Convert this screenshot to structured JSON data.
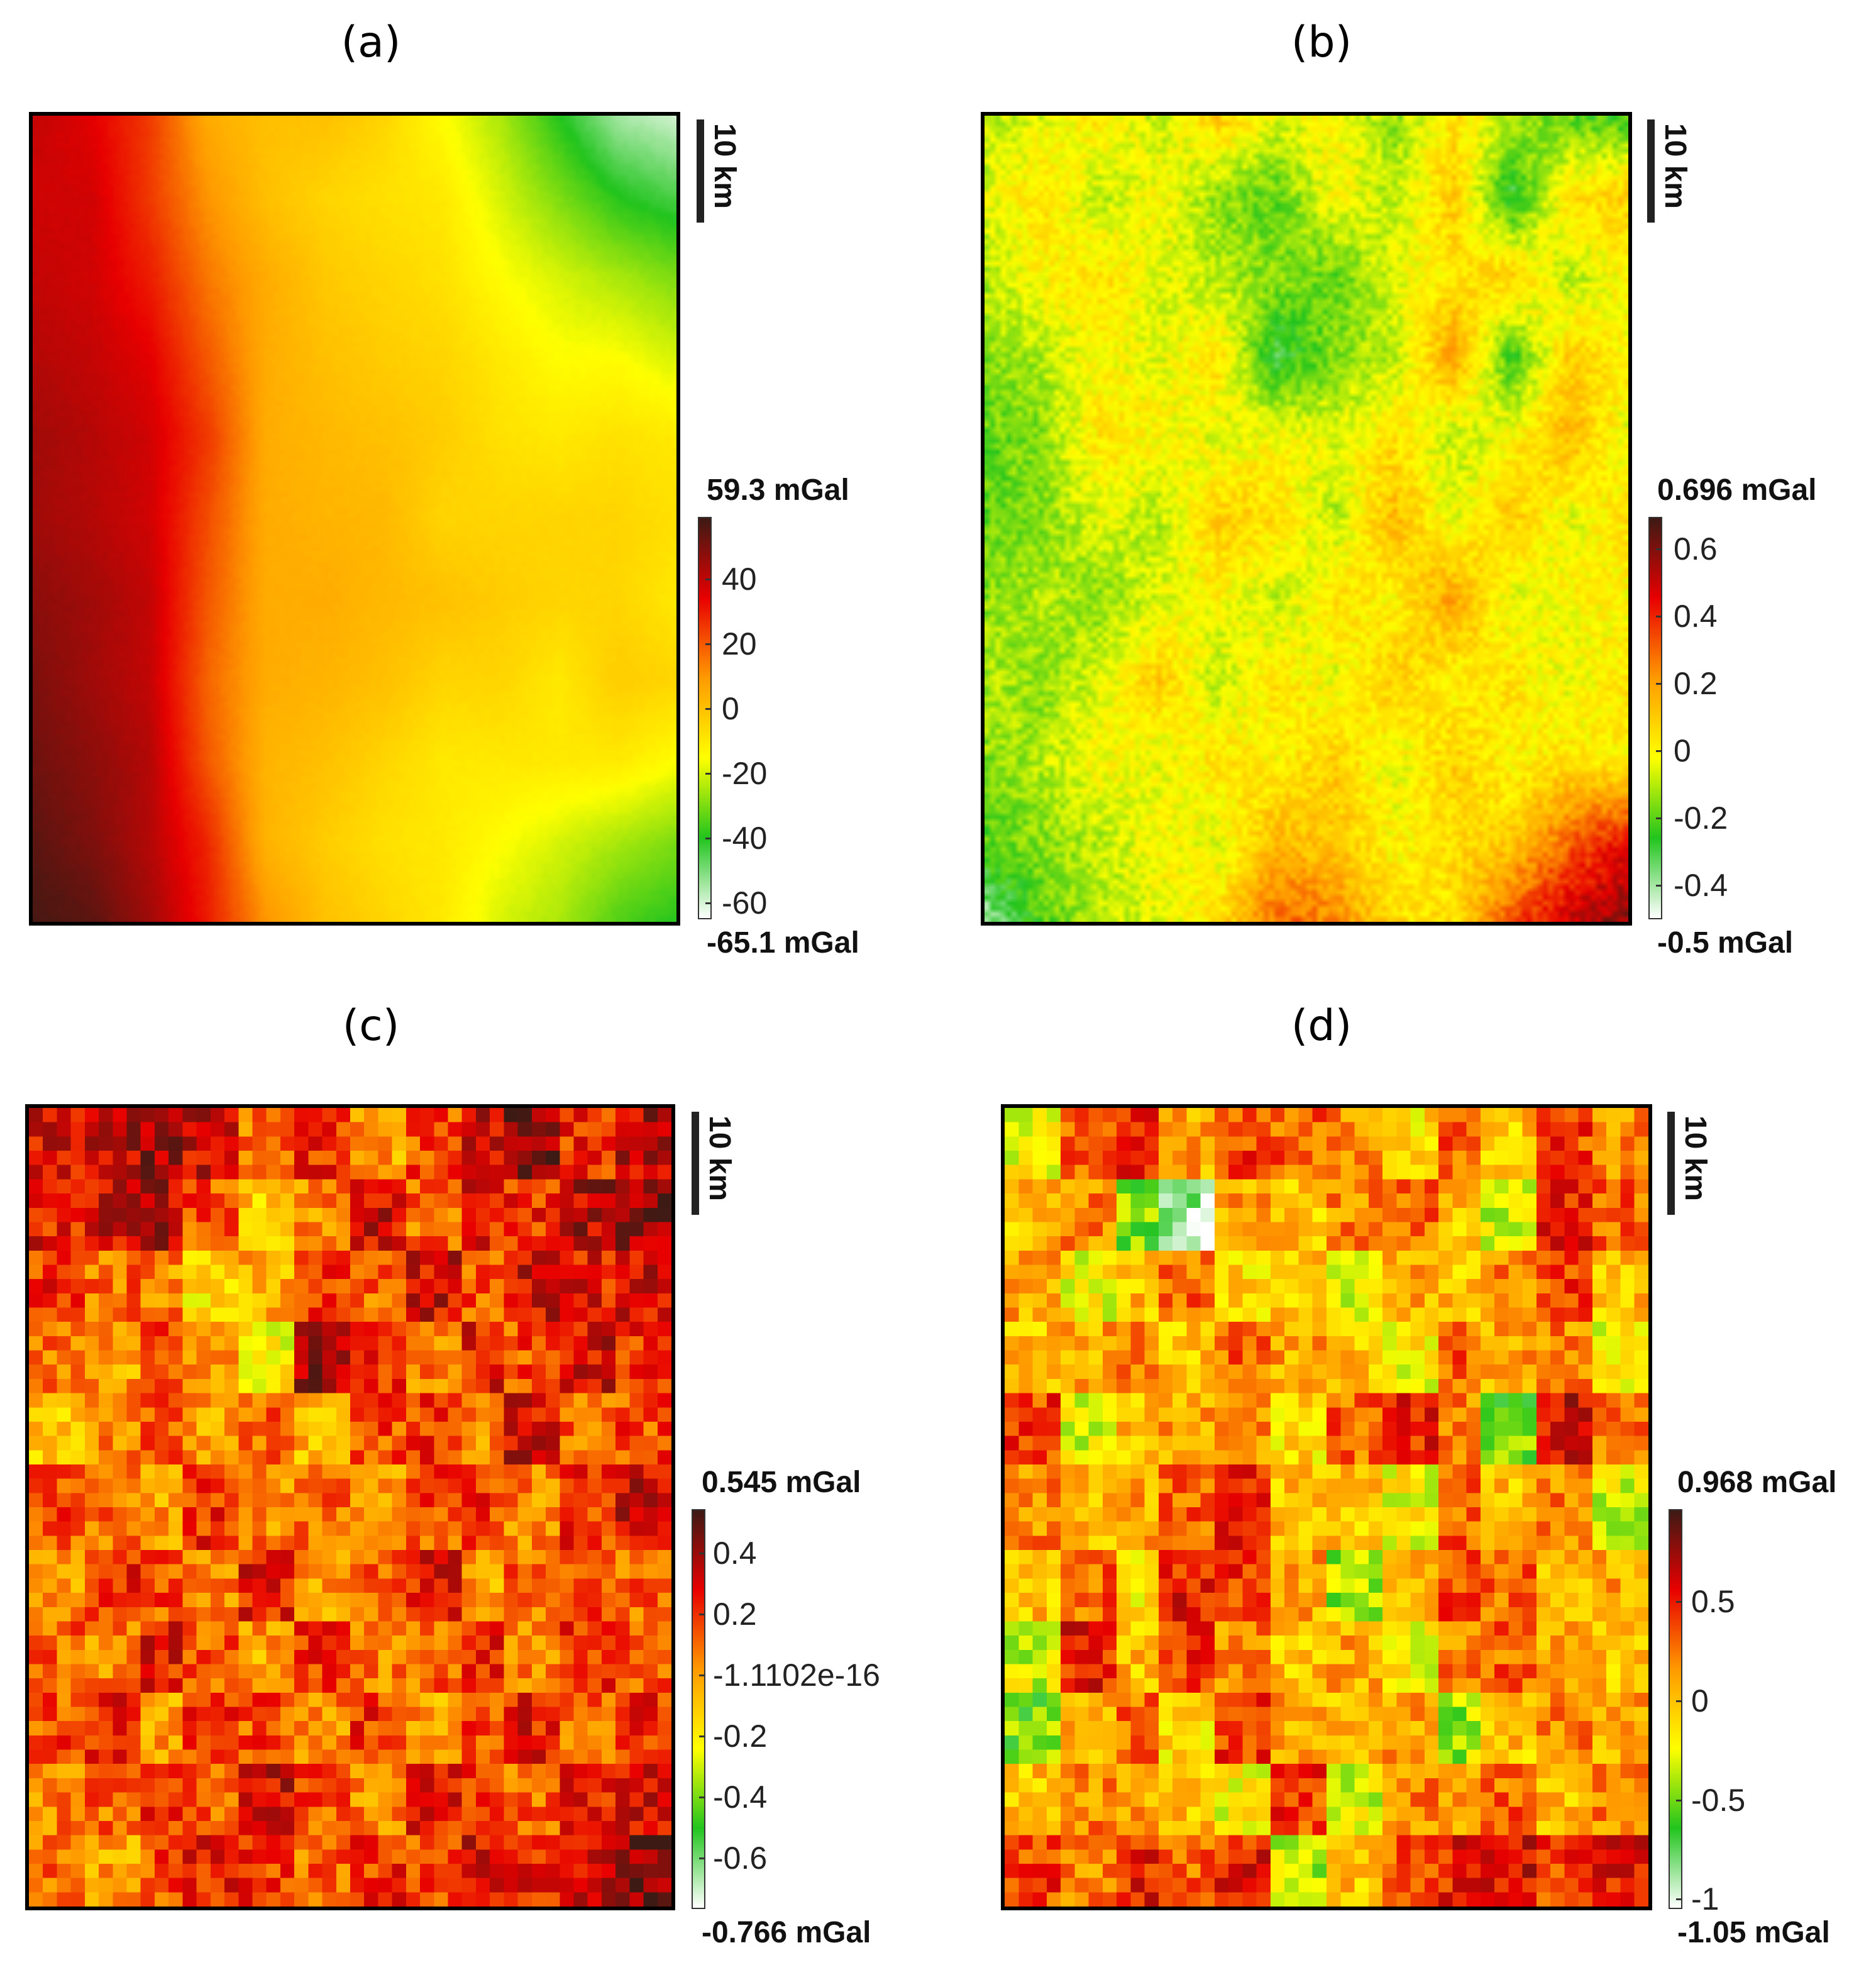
{
  "colormap": [
    "#ffffff",
    "#22c41e",
    "#ffff00",
    "#ff9a00",
    "#e80000",
    "#3d1a14"
  ],
  "chart_data": [
    {
      "type": "heatmap",
      "panel": "(a)",
      "scale_label": "10 km",
      "max_label": "59.3 mGal",
      "min_label": "-65.1 mGal",
      "vmin": -65.1,
      "vmax": 59.3,
      "ticks": [
        {
          "value": 40,
          "label": "40"
        },
        {
          "value": 20,
          "label": "20"
        },
        {
          "value": 0,
          "label": "0"
        },
        {
          "value": -20,
          "label": "-20"
        },
        {
          "value": -40,
          "label": "-40"
        },
        {
          "value": -60,
          "label": "-60"
        }
      ],
      "smooth": true,
      "grid": [
        [
          40,
          35,
          25,
          5,
          0,
          0,
          -5,
          -15,
          -25,
          -40,
          -55,
          -60
        ],
        [
          38,
          38,
          25,
          10,
          0,
          -5,
          -8,
          -10,
          -20,
          -30,
          -40,
          -45
        ],
        [
          40,
          38,
          30,
          15,
          5,
          -2,
          -5,
          -8,
          -15,
          -20,
          -25,
          -30
        ],
        [
          42,
          40,
          35,
          20,
          5,
          0,
          -3,
          -5,
          -10,
          -15,
          -15,
          -20
        ],
        [
          45,
          42,
          38,
          25,
          5,
          2,
          0,
          -3,
          -8,
          -10,
          -8,
          -10
        ],
        [
          45,
          42,
          38,
          22,
          5,
          3,
          2,
          -5,
          -5,
          -5,
          -5,
          -8
        ],
        [
          48,
          45,
          40,
          20,
          5,
          5,
          2,
          0,
          -3,
          -5,
          -5,
          -10
        ],
        [
          50,
          45,
          40,
          18,
          5,
          3,
          0,
          -5,
          -5,
          -10,
          -3,
          -5
        ],
        [
          52,
          48,
          42,
          20,
          3,
          0,
          -5,
          -10,
          -10,
          -10,
          -10,
          -15
        ],
        [
          55,
          50,
          42,
          28,
          3,
          -3,
          -8,
          -10,
          -15,
          -20,
          -25,
          -30
        ],
        [
          58,
          55,
          45,
          30,
          10,
          0,
          -5,
          -10,
          -20,
          -25,
          -35,
          -40
        ]
      ]
    },
    {
      "type": "heatmap",
      "panel": "(b)",
      "scale_label": "10 km",
      "max_label": "0.696 mGal",
      "min_label": "-0.5 mGal",
      "vmin": -0.5,
      "vmax": 0.696,
      "ticks": [
        {
          "value": 0.6,
          "label": "0.6"
        },
        {
          "value": 0.4,
          "label": "0.4"
        },
        {
          "value": 0.2,
          "label": "0.2"
        },
        {
          "value": 0,
          "label": "0"
        },
        {
          "value": -0.2,
          "label": "-0.2"
        },
        {
          "value": -0.4,
          "label": "-0.4"
        }
      ],
      "smooth": true,
      "grid": [
        [
          -0.1,
          -0.05,
          0.05,
          -0.1,
          0.1,
          -0.05,
          0.0,
          -0.15,
          0.05,
          -0.1,
          -0.2,
          -0.25
        ],
        [
          -0.05,
          0.05,
          -0.1,
          0.0,
          -0.15,
          -0.2,
          0.0,
          -0.1,
          0.1,
          -0.3,
          0.05,
          0.1
        ],
        [
          -0.1,
          0.0,
          0.05,
          -0.05,
          -0.1,
          -0.15,
          -0.2,
          -0.05,
          0.05,
          0.1,
          -0.1,
          0.0
        ],
        [
          -0.15,
          -0.1,
          0.0,
          -0.05,
          0.05,
          -0.3,
          -0.15,
          -0.1,
          0.2,
          -0.25,
          0.1,
          0.0
        ],
        [
          -0.2,
          -0.15,
          0.05,
          0.0,
          -0.05,
          0.0,
          -0.05,
          0.05,
          -0.1,
          0.0,
          0.15,
          -0.05
        ],
        [
          -0.2,
          -0.15,
          -0.05,
          -0.1,
          0.1,
          0.05,
          -0.1,
          0.15,
          -0.05,
          0.1,
          -0.05,
          0.05
        ],
        [
          -0.15,
          -0.1,
          -0.15,
          -0.05,
          0.0,
          -0.1,
          0.05,
          0.0,
          0.2,
          -0.05,
          0.0,
          0.0
        ],
        [
          -0.1,
          -0.15,
          -0.05,
          0.1,
          -0.1,
          0.05,
          -0.05,
          0.1,
          0.0,
          0.05,
          -0.05,
          0.05
        ],
        [
          -0.15,
          -0.1,
          0.0,
          -0.05,
          0.05,
          0.0,
          0.1,
          -0.05,
          0.1,
          0.0,
          0.05,
          0.0
        ],
        [
          -0.2,
          -0.15,
          -0.1,
          0.0,
          -0.05,
          0.15,
          0.1,
          0.0,
          0.05,
          0.1,
          0.3,
          0.45
        ],
        [
          -0.4,
          -0.2,
          -0.1,
          -0.05,
          0.05,
          0.3,
          0.25,
          0.05,
          0.05,
          0.35,
          0.5,
          0.6
        ]
      ]
    },
    {
      "type": "heatmap",
      "panel": "(c)",
      "scale_label": "10 km",
      "max_label": "0.545 mGal",
      "min_label": "-0.766 mGal",
      "vmin": -0.766,
      "vmax": 0.545,
      "ticks": [
        {
          "value": 0.4,
          "label": "0.4"
        },
        {
          "value": 0.2,
          "label": "0.2"
        },
        {
          "value": 0,
          "label": "-1.1102e-16"
        },
        {
          "value": -0.2,
          "label": "-0.2"
        },
        {
          "value": -0.4,
          "label": "-0.4"
        },
        {
          "value": -0.6,
          "label": "-0.6"
        }
      ],
      "smooth": false,
      "grid": [
        [
          0.3,
          0.35,
          0.4,
          0.3,
          0.1,
          0.2,
          0.0,
          0.15,
          0.3,
          0.45,
          0.2,
          0.35
        ],
        [
          0.25,
          0.3,
          0.35,
          0.15,
          -0.1,
          0.05,
          0.3,
          0.1,
          0.25,
          0.2,
          0.35,
          0.4
        ],
        [
          0.2,
          0.1,
          0.05,
          -0.15,
          -0.05,
          0.2,
          0.1,
          0.3,
          0.15,
          0.3,
          0.25,
          0.3
        ],
        [
          0.1,
          0.0,
          0.2,
          0.05,
          -0.2,
          0.4,
          0.2,
          0.05,
          0.25,
          0.15,
          0.3,
          0.2
        ],
        [
          -0.1,
          0.05,
          0.15,
          0.0,
          0.1,
          -0.05,
          0.15,
          0.2,
          0.05,
          0.3,
          0.1,
          0.15
        ],
        [
          0.15,
          0.1,
          0.0,
          0.2,
          0.05,
          0.1,
          0.0,
          0.15,
          0.2,
          0.05,
          0.2,
          0.3
        ],
        [
          0.0,
          0.2,
          0.15,
          0.05,
          0.25,
          0.0,
          0.1,
          0.25,
          0.0,
          0.1,
          0.15,
          0.1
        ],
        [
          0.1,
          0.05,
          0.25,
          0.15,
          0.0,
          0.2,
          0.05,
          0.1,
          0.25,
          0.05,
          0.2,
          0.15
        ],
        [
          0.15,
          0.25,
          0.0,
          0.2,
          0.15,
          0.05,
          0.2,
          0.0,
          0.15,
          0.25,
          0.1,
          0.2
        ],
        [
          0.05,
          0.1,
          0.2,
          0.1,
          0.3,
          0.15,
          0.05,
          0.25,
          0.2,
          0.1,
          0.25,
          0.3
        ],
        [
          0.1,
          0.0,
          0.15,
          0.25,
          0.2,
          0.1,
          0.2,
          0.15,
          0.3,
          0.25,
          0.3,
          0.45
        ]
      ]
    },
    {
      "type": "heatmap",
      "panel": "(d)",
      "scale_label": "10 km",
      "max_label": "0.968 mGal",
      "min_label": "-1.05 mGal",
      "vmin": -1.05,
      "vmax": 0.968,
      "ticks": [
        {
          "value": 0.5,
          "label": "0.5"
        },
        {
          "value": 0,
          "label": "0"
        },
        {
          "value": -0.5,
          "label": "-0.5"
        },
        {
          "value": -1,
          "label": "-1"
        }
      ],
      "smooth": false,
      "grid": [
        [
          -0.2,
          0.3,
          0.5,
          0.1,
          0.4,
          0.3,
          0.2,
          -0.1,
          0.3,
          0.0,
          0.4,
          0.2
        ],
        [
          0.0,
          0.2,
          -0.5,
          -0.9,
          0.1,
          0.0,
          0.2,
          0.3,
          0.0,
          -0.3,
          0.5,
          0.3
        ],
        [
          0.1,
          -0.2,
          0.0,
          0.3,
          -0.1,
          0.0,
          -0.3,
          0.1,
          0.0,
          0.2,
          0.4,
          0.0
        ],
        [
          0.0,
          0.1,
          0.2,
          0.0,
          0.3,
          0.1,
          0.0,
          -0.2,
          0.3,
          0.1,
          0.2,
          -0.2
        ],
        [
          0.4,
          -0.3,
          0.0,
          0.1,
          0.2,
          -0.1,
          0.3,
          0.5,
          0.2,
          -0.5,
          0.6,
          0.3
        ],
        [
          0.2,
          0.0,
          0.1,
          0.3,
          0.5,
          0.0,
          0.0,
          -0.2,
          0.3,
          0.0,
          0.2,
          -0.3
        ],
        [
          0.0,
          0.3,
          -0.1,
          0.5,
          0.4,
          0.1,
          -0.4,
          0.0,
          0.4,
          0.3,
          0.0,
          0.1
        ],
        [
          -0.3,
          0.5,
          0.0,
          0.4,
          0.2,
          0.0,
          0.1,
          -0.2,
          0.2,
          0.3,
          0.1,
          0.0
        ],
        [
          -0.5,
          0.1,
          0.3,
          -0.1,
          0.4,
          0.1,
          0.0,
          0.1,
          -0.4,
          0.0,
          0.2,
          0.1
        ],
        [
          0.0,
          0.2,
          0.1,
          0.0,
          -0.2,
          0.4,
          -0.3,
          0.2,
          0.1,
          0.3,
          0.0,
          0.2
        ],
        [
          0.4,
          0.2,
          0.5,
          0.3,
          0.5,
          -0.4,
          0.0,
          0.3,
          0.5,
          0.6,
          0.4,
          0.5
        ]
      ]
    }
  ]
}
